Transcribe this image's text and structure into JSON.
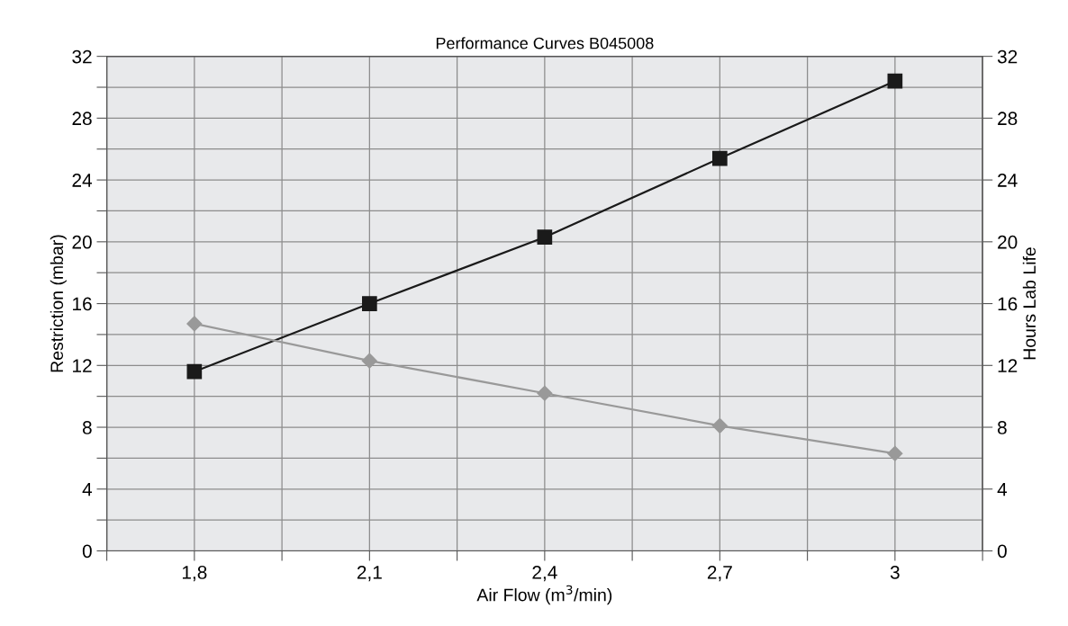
{
  "chart_data": {
    "type": "line",
    "title": "Performance Curves B045008",
    "xlabel": "Air Flow (m$^{3}$/min)",
    "ylabel": "Restriction (mbar)",
    "y2label": "Hours Lab Life",
    "x": [
      1.8,
      2.1,
      2.4,
      2.7,
      3.0
    ],
    "series": [
      {
        "color": "#1a1a1a",
        "marker": "square",
        "values": [
          11.6,
          16.0,
          20.3,
          25.4,
          30.4
        ]
      },
      {
        "color": "#999999",
        "marker": "diamond",
        "values": [
          14.7,
          12.3,
          10.2,
          8.1,
          6.3
        ]
      }
    ],
    "xlim": [
      1.65,
      3.15
    ],
    "xticks": [
      {
        "value": 1.65,
        "label": null
      },
      {
        "value": 1.8,
        "label": "1,8"
      },
      {
        "value": 1.95,
        "label": null
      },
      {
        "value": 2.1,
        "label": "2,1"
      },
      {
        "value": 2.25,
        "label": null
      },
      {
        "value": 2.4,
        "label": "2,4"
      },
      {
        "value": 2.55,
        "label": null
      },
      {
        "value": 2.7,
        "label": "2,7"
      },
      {
        "value": 2.85,
        "label": null
      },
      {
        "value": 3.0,
        "label": "3"
      },
      {
        "value": 3.15,
        "label": null
      }
    ],
    "ylim": [
      0,
      32
    ],
    "yticks": [
      0,
      {
        "value": 2,
        "label": null
      },
      4,
      {
        "value": 6,
        "label": null
      },
      8,
      {
        "value": 10,
        "label": null
      },
      12,
      {
        "value": 14,
        "label": null
      },
      16,
      {
        "value": 18,
        "label": null
      },
      20,
      {
        "value": 22,
        "label": null
      },
      24,
      {
        "value": 26,
        "label": null
      },
      28,
      {
        "value": 30,
        "label": null
      },
      32
    ],
    "y2lim": [
      0,
      32
    ],
    "y2ticks": [
      0,
      4,
      8,
      12,
      16,
      20,
      24,
      28,
      32
    ],
    "grid": true,
    "line_style": "solid"
  }
}
